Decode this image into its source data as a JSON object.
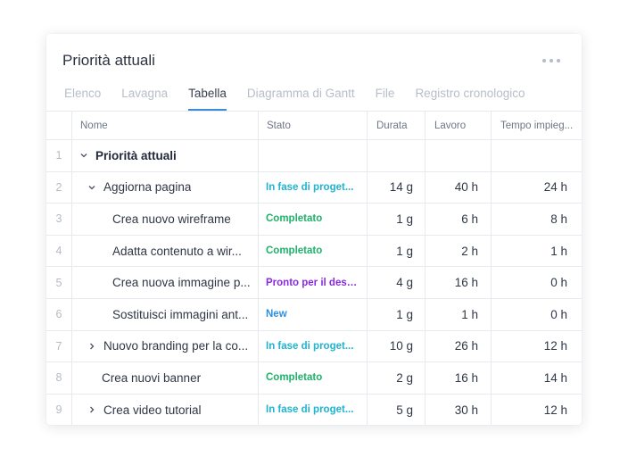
{
  "card": {
    "title": "Priorità attuali",
    "more_icon": "ellipsis-icon"
  },
  "tabs": [
    {
      "label": "Elenco",
      "active": false
    },
    {
      "label": "Lavagna",
      "active": false
    },
    {
      "label": "Tabella",
      "active": true
    },
    {
      "label": "Diagramma di Gantt",
      "active": false
    },
    {
      "label": "File",
      "active": false
    },
    {
      "label": "Registro cronologico",
      "active": false
    }
  ],
  "columns": [
    "",
    "Nome",
    "Stato",
    "Durata",
    "Lavoro",
    "Tempo impieg..."
  ],
  "colors": {
    "accent": "#3a8ed8",
    "status_in_fase": "#1fb4cf",
    "status_completato": "#20b26b",
    "status_pronto": "#8a2be2",
    "status_new": "#2e8fe0"
  },
  "rows": [
    {
      "num": "1",
      "name": "Priorità attuali",
      "indent": 0,
      "chevron": "down",
      "bold": true,
      "status": "",
      "status_color": "",
      "durata": "",
      "lavoro": "",
      "tempo": ""
    },
    {
      "num": "2",
      "name": "Aggiorna pagina",
      "indent": 1,
      "chevron": "down",
      "bold": false,
      "status": "In fase di proget...",
      "status_color": "#1fb4cf",
      "durata": "14 g",
      "lavoro": "40 h",
      "tempo": "24 h"
    },
    {
      "num": "3",
      "name": "Crea nuovo wireframe",
      "indent": 2,
      "chevron": "",
      "bold": false,
      "status": "Completato",
      "status_color": "#20b26b",
      "durata": "1 g",
      "lavoro": "6 h",
      "tempo": "8 h"
    },
    {
      "num": "4",
      "name": "Adatta contenuto a wir...",
      "indent": 2,
      "chevron": "",
      "bold": false,
      "status": "Completato",
      "status_color": "#20b26b",
      "durata": "1 g",
      "lavoro": "2 h",
      "tempo": "1 h"
    },
    {
      "num": "5",
      "name": "Crea nuova immagine p...",
      "indent": 2,
      "chevron": "",
      "bold": false,
      "status": "Pronto per il design",
      "status_color": "#8a2be2",
      "durata": "4 g",
      "lavoro": "16 h",
      "tempo": "0 h"
    },
    {
      "num": "6",
      "name": "Sostituisci immagini ant...",
      "indent": 2,
      "chevron": "",
      "bold": false,
      "status": "New",
      "status_color": "#2e8fe0",
      "durata": "1 g",
      "lavoro": "1 h",
      "tempo": "0 h"
    },
    {
      "num": "7",
      "name": "Nuovo branding per la co...",
      "indent": 1,
      "chevron": "right",
      "bold": false,
      "status": "In fase di proget...",
      "status_color": "#1fb4cf",
      "durata": "10 g",
      "lavoro": "26 h",
      "tempo": "12 h"
    },
    {
      "num": "8",
      "name": "Crea nuovi banner",
      "indent": 1,
      "chevron": "",
      "bold": false,
      "status": "Completato",
      "status_color": "#20b26b",
      "durata": "2 g",
      "lavoro": "16 h",
      "tempo": "14 h"
    },
    {
      "num": "9",
      "name": "Crea video tutorial",
      "indent": 1,
      "chevron": "right",
      "bold": false,
      "status": "In fase di proget...",
      "status_color": "#1fb4cf",
      "durata": "5 g",
      "lavoro": "30 h",
      "tempo": "12 h"
    }
  ]
}
